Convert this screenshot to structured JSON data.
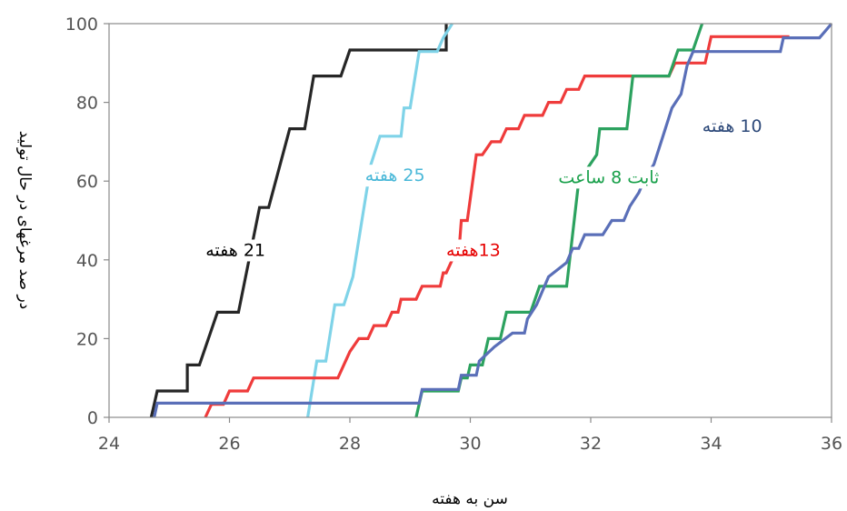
{
  "chart_data": {
    "type": "line",
    "step": true,
    "xlabel": "سن به هفته",
    "ylabel": "در صد مرغهای در حال تولید",
    "xlim": [
      24,
      36
    ],
    "ylim": [
      0,
      100
    ],
    "xticks": [
      24,
      26,
      28,
      30,
      32,
      34,
      36
    ],
    "yticks": [
      0,
      20,
      40,
      60,
      80,
      100
    ],
    "grid": false,
    "series": [
      {
        "name": "21 هفته",
        "color": "#262626",
        "points": [
          [
            24.7,
            0
          ],
          [
            24.8,
            6.7
          ],
          [
            25.3,
            6.7
          ],
          [
            25.3,
            13.3
          ],
          [
            25.5,
            13.3
          ],
          [
            25.8,
            26.7
          ],
          [
            26.15,
            26.7
          ],
          [
            26.5,
            53.3
          ],
          [
            26.65,
            53.3
          ],
          [
            27.0,
            73.3
          ],
          [
            27.25,
            73.3
          ],
          [
            27.4,
            86.7
          ],
          [
            27.65,
            86.7
          ],
          [
            27.75,
            86.7
          ],
          [
            27.85,
            86.7
          ],
          [
            28.0,
            93.3
          ],
          [
            29.6,
            93.3
          ],
          [
            29.6,
            100
          ]
        ]
      },
      {
        "name": "25 هفته",
        "color": "#7fd3e8",
        "points": [
          [
            27.3,
            0
          ],
          [
            27.45,
            14.3
          ],
          [
            27.6,
            14.3
          ],
          [
            27.75,
            28.6
          ],
          [
            27.9,
            28.6
          ],
          [
            28.05,
            35.7
          ],
          [
            28.2,
            50
          ],
          [
            28.35,
            64.3
          ],
          [
            28.5,
            71.4
          ],
          [
            28.85,
            71.4
          ],
          [
            28.9,
            78.6
          ],
          [
            29.0,
            78.6
          ],
          [
            29.15,
            92.9
          ],
          [
            29.45,
            92.9
          ],
          [
            29.55,
            96.4
          ],
          [
            29.7,
            100
          ]
        ]
      },
      {
        "name": "13هفته",
        "color": "#ef3b3b",
        "points": [
          [
            25.6,
            0
          ],
          [
            25.7,
            3.3
          ],
          [
            25.9,
            3.3
          ],
          [
            26.0,
            6.7
          ],
          [
            26.3,
            6.7
          ],
          [
            26.4,
            10
          ],
          [
            27.8,
            10
          ],
          [
            28.0,
            16.7
          ],
          [
            28.15,
            20
          ],
          [
            28.3,
            20
          ],
          [
            28.4,
            23.3
          ],
          [
            28.6,
            23.3
          ],
          [
            28.7,
            26.7
          ],
          [
            28.8,
            26.7
          ],
          [
            28.85,
            30
          ],
          [
            29.1,
            30
          ],
          [
            29.2,
            33.3
          ],
          [
            29.5,
            33.3
          ],
          [
            29.55,
            36.7
          ],
          [
            29.6,
            36.7
          ],
          [
            29.7,
            40
          ],
          [
            29.8,
            40
          ],
          [
            29.85,
            50
          ],
          [
            29.95,
            50
          ],
          [
            30.1,
            66.7
          ],
          [
            30.2,
            66.7
          ],
          [
            30.35,
            70
          ],
          [
            30.5,
            70
          ],
          [
            30.6,
            73.3
          ],
          [
            30.8,
            73.3
          ],
          [
            30.9,
            76.7
          ],
          [
            31.2,
            76.7
          ],
          [
            31.3,
            80
          ],
          [
            31.5,
            80
          ],
          [
            31.6,
            83.3
          ],
          [
            31.8,
            83.3
          ],
          [
            31.9,
            86.7
          ],
          [
            33.3,
            86.7
          ],
          [
            33.4,
            90
          ],
          [
            33.9,
            90
          ],
          [
            34.0,
            96.7
          ],
          [
            35.3,
            96.7
          ]
        ]
      },
      {
        "name": "ثابت 8 ساعت",
        "color": "#2ca25f",
        "points": [
          [
            29.1,
            0
          ],
          [
            29.2,
            6.7
          ],
          [
            29.8,
            6.7
          ],
          [
            29.85,
            10
          ],
          [
            29.95,
            10
          ],
          [
            30.0,
            13.3
          ],
          [
            30.2,
            13.3
          ],
          [
            30.3,
            20
          ],
          [
            30.5,
            20
          ],
          [
            30.6,
            26.7
          ],
          [
            31.0,
            26.7
          ],
          [
            31.15,
            33.3
          ],
          [
            31.6,
            33.3
          ],
          [
            31.8,
            60
          ],
          [
            32.1,
            66.7
          ],
          [
            32.15,
            73.3
          ],
          [
            32.6,
            73.3
          ],
          [
            32.7,
            86.7
          ],
          [
            33.3,
            86.7
          ],
          [
            33.45,
            93.3
          ],
          [
            33.7,
            93.3
          ],
          [
            33.85,
            100
          ]
        ]
      },
      {
        "name": "10 هفته",
        "color": "#5a6fb8",
        "points": [
          [
            24.75,
            0
          ],
          [
            24.8,
            3.6
          ],
          [
            29.15,
            3.6
          ],
          [
            29.2,
            7.1
          ],
          [
            29.8,
            7.1
          ],
          [
            29.85,
            10.7
          ],
          [
            30.1,
            10.7
          ],
          [
            30.15,
            14.3
          ],
          [
            30.4,
            17.9
          ],
          [
            30.7,
            21.4
          ],
          [
            30.9,
            21.4
          ],
          [
            30.95,
            25
          ],
          [
            31.1,
            28.6
          ],
          [
            31.3,
            35.7
          ],
          [
            31.6,
            39.3
          ],
          [
            31.7,
            42.9
          ],
          [
            31.8,
            42.9
          ],
          [
            31.9,
            46.4
          ],
          [
            32.2,
            46.4
          ],
          [
            32.35,
            50
          ],
          [
            32.55,
            50
          ],
          [
            32.65,
            53.6
          ],
          [
            32.8,
            57.1
          ],
          [
            32.9,
            60.7
          ],
          [
            33.05,
            64.3
          ],
          [
            33.2,
            71.4
          ],
          [
            33.35,
            78.6
          ],
          [
            33.5,
            82.1
          ],
          [
            33.6,
            89.3
          ],
          [
            33.7,
            92.9
          ],
          [
            35.15,
            92.9
          ],
          [
            35.2,
            96.4
          ],
          [
            35.8,
            96.4
          ],
          [
            35.9,
            98.2
          ],
          [
            36,
            100
          ]
        ]
      }
    ],
    "annotations": [
      {
        "text": "21 هفته",
        "color": "#000000",
        "x": 26.1,
        "y": 41
      },
      {
        "text": "25 هفته",
        "color": "#4ab8d8",
        "x": 28.75,
        "y": 60
      },
      {
        "text": "13هفته",
        "color": "#e60000",
        "x": 30.05,
        "y": 41
      },
      {
        "text": "ثابت 8 ساعت",
        "color": "#18a04a",
        "x": 32.3,
        "y": 59.5
      },
      {
        "text": "10 هفته",
        "color": "#2e4a7a",
        "x": 34.35,
        "y": 72.5
      }
    ]
  }
}
